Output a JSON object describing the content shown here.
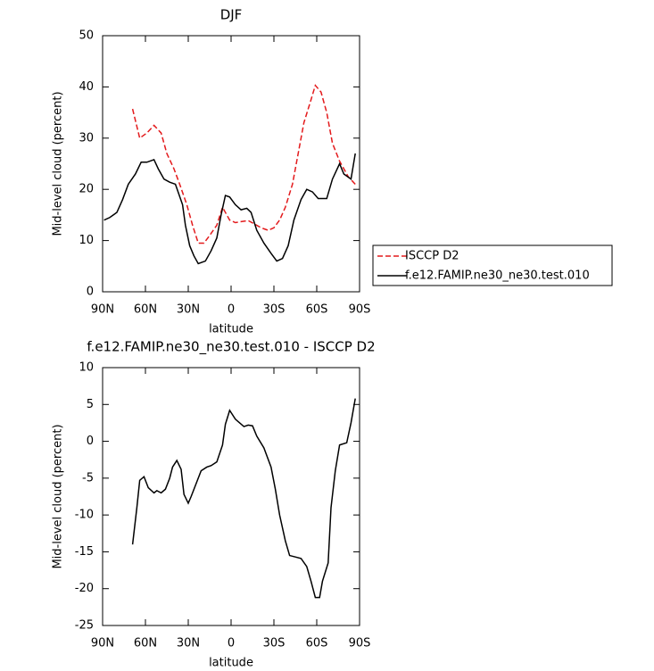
{
  "chart_data": [
    {
      "type": "line",
      "title": "DJF",
      "xlabel": "latitude",
      "ylabel": "Mid-level cloud (percent)",
      "xlim": [
        90,
        -90
      ],
      "ylim": [
        0,
        50
      ],
      "xticks": [
        {
          "value": 90,
          "label": "90N"
        },
        {
          "value": 60,
          "label": "60N"
        },
        {
          "value": 30,
          "label": "30N"
        },
        0,
        {
          "value": -30,
          "label": "30S"
        },
        {
          "value": -60,
          "label": "60S"
        },
        {
          "value": -90,
          "label": "90S"
        }
      ],
      "yticks": [
        0,
        10,
        20,
        30,
        40,
        50
      ],
      "legend": "right",
      "series": [
        {
          "name": "ISCCP D2",
          "color": "#e31a1c",
          "linestyle": "dashed",
          "x": [
            69,
            64,
            59,
            54,
            49,
            45,
            40,
            36,
            31,
            27,
            23,
            19,
            15,
            10,
            6,
            1,
            -3,
            -7,
            -12,
            -16,
            -21,
            -26,
            -30,
            -34,
            -38,
            -43,
            -47,
            -51,
            -56,
            -59,
            -63,
            -67,
            -71,
            -76,
            -82,
            -87
          ],
          "values": [
            35.7,
            30,
            31,
            32.5,
            31,
            27,
            24,
            21,
            17,
            13,
            9.5,
            9.5,
            11,
            13,
            16.5,
            14,
            13.5,
            13.7,
            13.9,
            13.3,
            12.5,
            12,
            12.5,
            14,
            16.5,
            21,
            27,
            33,
            37.5,
            40.3,
            39,
            35,
            29,
            25.5,
            22.5,
            21
          ]
        },
        {
          "name": "f.e12.FAMIP.ne30_ne30.test.010",
          "color": "#000000",
          "linestyle": "solid",
          "x": [
            89,
            85,
            80,
            76,
            72,
            67,
            63,
            59,
            54,
            51,
            47,
            43,
            39,
            34,
            32,
            29,
            26,
            23,
            18,
            14,
            10,
            7,
            4,
            1,
            -3,
            -7,
            -11,
            -14,
            -18,
            -23,
            -28,
            -32,
            -36,
            -40,
            -44,
            -49,
            -53,
            -57,
            -61,
            -67,
            -71,
            -76,
            -79,
            -84,
            -87
          ],
          "values": [
            14,
            14.5,
            15.5,
            18,
            21,
            23,
            25.3,
            25.3,
            25.8,
            24,
            22,
            21.4,
            21,
            17,
            13,
            9,
            7,
            5.5,
            6,
            8,
            10.5,
            15,
            18.8,
            18.5,
            17,
            16,
            16.3,
            15.5,
            12,
            9.5,
            7.5,
            6,
            6.5,
            9,
            14,
            18,
            20,
            19.5,
            18.2,
            18.2,
            22,
            25,
            23,
            22,
            27
          ]
        }
      ]
    },
    {
      "type": "line",
      "title": "f.e12.FAMIP.ne30_ne30.test.010 - ISCCP D2",
      "xlabel": "latitude",
      "ylabel": "Mid-level cloud (percent)",
      "xlim": [
        90,
        -90
      ],
      "ylim": [
        -25,
        10
      ],
      "xticks": [
        {
          "value": 90,
          "label": "90N"
        },
        {
          "value": 60,
          "label": "60N"
        },
        {
          "value": 30,
          "label": "30N"
        },
        0,
        {
          "value": -30,
          "label": "30S"
        },
        {
          "value": -60,
          "label": "60S"
        },
        {
          "value": -90,
          "label": "90S"
        }
      ],
      "yticks": [
        -25,
        -20,
        -15,
        -10,
        -5,
        0,
        5,
        10
      ],
      "series": [
        {
          "color": "#000000",
          "linestyle": "solid",
          "x": [
            69,
            66,
            64,
            61,
            58,
            54,
            52,
            49,
            46,
            43,
            41,
            38,
            35,
            33,
            30,
            28,
            24,
            21,
            17,
            14,
            10,
            6,
            4,
            1,
            -3,
            -6,
            -9,
            -12,
            -15,
            -18,
            -23,
            -28,
            -31,
            -34,
            -38,
            -41,
            -45,
            -49,
            -53,
            -56,
            -59,
            -62,
            -64,
            -68,
            -70,
            -73,
            -76,
            -81,
            -84,
            -87
          ],
          "values": [
            -14,
            -9,
            -5.3,
            -4.8,
            -6.3,
            -7,
            -6.7,
            -7,
            -6.5,
            -5,
            -3.5,
            -2.6,
            -3.8,
            -7.2,
            -8.4,
            -7.5,
            -5.5,
            -4,
            -3.5,
            -3.3,
            -2.8,
            -0.5,
            2.3,
            4.2,
            3,
            2.5,
            2,
            2.2,
            2.1,
            0.7,
            -0.9,
            -3.5,
            -6.5,
            -10,
            -13.5,
            -15.5,
            -15.7,
            -15.9,
            -17,
            -19,
            -21.2,
            -21.2,
            -19,
            -16.5,
            -9,
            -4,
            -0.5,
            -0.2,
            2.5,
            5.8
          ]
        }
      ]
    }
  ]
}
